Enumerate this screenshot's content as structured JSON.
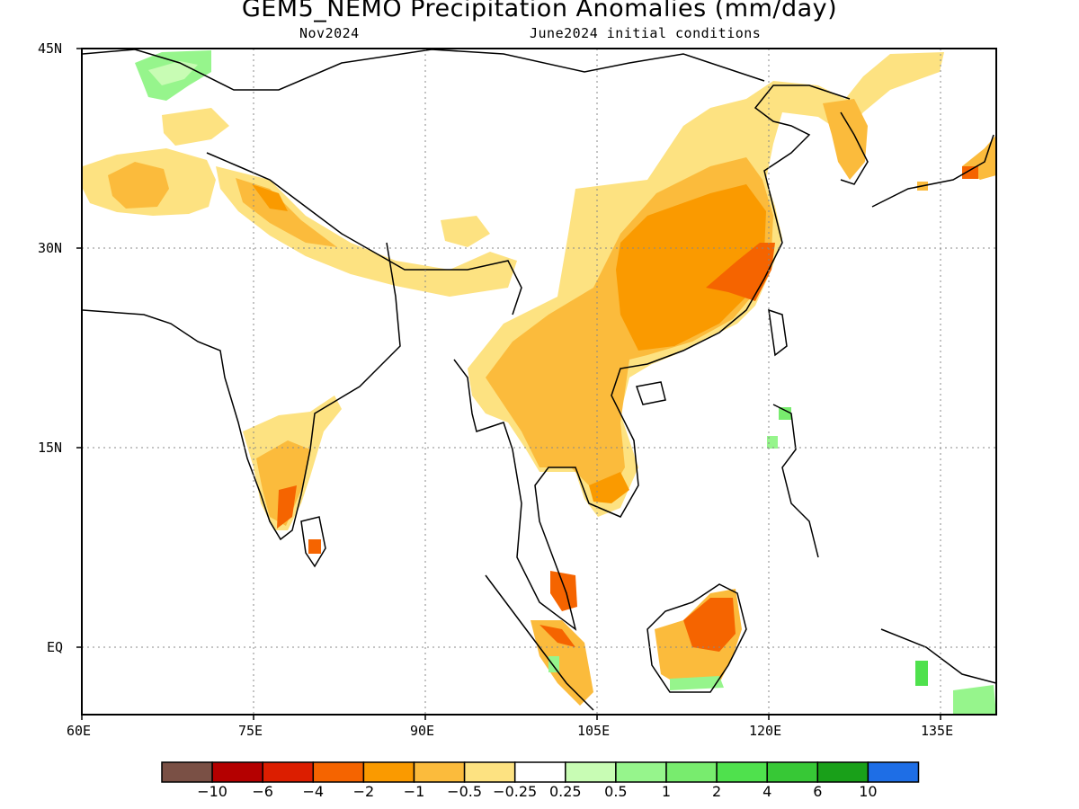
{
  "title": "GEM5_NEMO Precipitation Anomalies (mm/day)",
  "subtitle_left": "Nov2024",
  "subtitle_right": "June2024 initial conditions",
  "map": {
    "lon_range": [
      60,
      140
    ],
    "lat_range": [
      -6,
      45
    ],
    "lon_ticks": [
      "60E",
      "75E",
      "90E",
      "105E",
      "120E",
      "135E"
    ],
    "lat_ticks": [
      "45N",
      "30N",
      "15N",
      "EQ"
    ],
    "grid": "dotted",
    "field_summary": "Dry (negative) anomalies over most of China, Indochina, southern India, Himalaya, Pakistan/Afghanistan, Korea, Borneo and Sumatra; small wet patches over Kazakhstan, Luzon, Mindanao, southern Borneo, New Guinea"
  },
  "colorbar": {
    "colors": [
      "#7a5045",
      "#b40000",
      "#dc1e00",
      "#f56400",
      "#fa9a00",
      "#fbbb3c",
      "#fde281",
      "#ffffff",
      "#c8fcb4",
      "#96f58c",
      "#78ec6e",
      "#4fe14d",
      "#37c836",
      "#19a019",
      "#1e6ee6"
    ],
    "labels": [
      "−10",
      "−6",
      "−4",
      "−2",
      "−1",
      "−0.5",
      "−0.25",
      "0.25",
      "0.5",
      "1",
      "2",
      "4",
      "6",
      "10"
    ]
  },
  "palette": {
    "light_orange": "#fde281",
    "mid_orange": "#fbbb3c",
    "orange": "#fa9a00",
    "dark_orange": "#f56400",
    "light_green": "#96f58c",
    "green": "#4fe14d"
  }
}
